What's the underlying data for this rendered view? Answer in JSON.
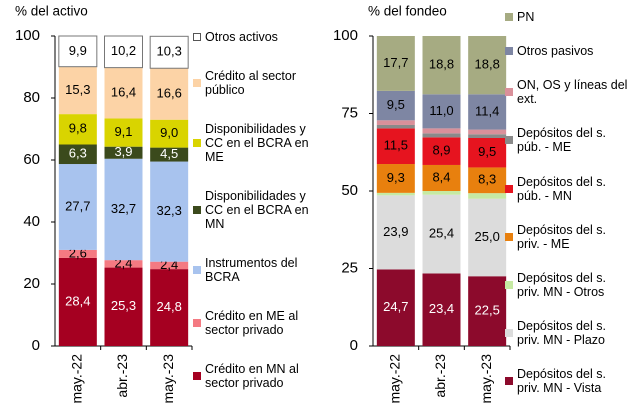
{
  "chart_data": [
    {
      "type": "stacked-bar",
      "title": "% del activo",
      "categories": [
        "may.-22",
        "abr.-23",
        "may.-23"
      ],
      "ylim": [
        0,
        100
      ],
      "yticks": [
        0,
        20,
        40,
        60,
        80,
        100
      ],
      "series": [
        {
          "name": "Crédito en MN al sector privado",
          "color": "#a50021",
          "values": [
            28.4,
            25.3,
            24.8
          ],
          "value_labels": [
            "28,4",
            "25,3",
            "24,8"
          ]
        },
        {
          "name": "Crédito en ME al sector privado",
          "color": "#f47a82",
          "values": [
            2.6,
            2.4,
            2.4
          ],
          "value_labels": [
            "2,6",
            "2,4",
            "2,4"
          ]
        },
        {
          "name": "Instrumentos del BCRA",
          "color": "#a8c3ee",
          "values": [
            27.7,
            32.7,
            32.3
          ],
          "value_labels": [
            "27,7",
            "32,7",
            "32,3"
          ]
        },
        {
          "name": "Disponibilidades y CC en el BCRA en MN",
          "color": "#3b4a1c",
          "values": [
            6.3,
            3.9,
            4.5
          ],
          "value_labels": [
            "6,3",
            "3,9",
            "4,5"
          ]
        },
        {
          "name": "Disponibilidades y CC en el BCRA en ME",
          "color": "#d9d400",
          "values": [
            9.8,
            9.1,
            9.0
          ],
          "value_labels": [
            "9,8",
            "9,1",
            "9,0"
          ]
        },
        {
          "name": "Crédito al sector público",
          "color": "#fcd3a6",
          "values": [
            15.3,
            16.4,
            16.6
          ],
          "value_labels": [
            "15,3",
            "16,4",
            "16,6"
          ]
        },
        {
          "name": "Otros activos",
          "color": "#ffffff",
          "values": [
            9.9,
            10.2,
            10.3
          ],
          "value_labels": [
            "9,9",
            "10,2",
            "10,3"
          ]
        }
      ]
    },
    {
      "type": "stacked-bar",
      "title": "% del fondeo",
      "categories": [
        "may.-22",
        "abr.-23",
        "may.-23"
      ],
      "ylim": [
        0,
        100
      ],
      "yticks": [
        0,
        25,
        50,
        75,
        100
      ],
      "series": [
        {
          "name": "Depósitos del s. priv. MN - Vista",
          "color": "#8c0a2c",
          "values": [
            24.7,
            23.4,
            22.5
          ],
          "value_labels": [
            "24,7",
            "23,4",
            "22,5"
          ]
        },
        {
          "name": "Depósitos del s. priv. MN - Plazo",
          "color": "#dcdcdc",
          "values": [
            23.9,
            25.4,
            25.0
          ],
          "value_labels": [
            "23,9",
            "25,4",
            "25,0"
          ]
        },
        {
          "name": "Depósitos del s. priv. MN - Otros",
          "color": "#c6eaa3",
          "values": [
            0.8,
            1.2,
            1.8
          ]
        },
        {
          "name": "Depósitos del s. priv. - ME",
          "color": "#e8800e",
          "values": [
            9.3,
            8.4,
            8.3
          ],
          "value_labels": [
            "9,3",
            "8,4",
            "8,3"
          ]
        },
        {
          "name": "Depósitos del s. púb. - MN",
          "color": "#e6141f",
          "values": [
            11.5,
            8.9,
            9.5
          ],
          "value_labels": [
            "11,5",
            "8,9",
            "9,5"
          ]
        },
        {
          "name": "Depósitos del s. púb. - ME",
          "color": "#8a8a8a",
          "values": [
            1.1,
            1.3,
            1.2
          ]
        },
        {
          "name": "ON, OS y líneas del ext.",
          "color": "#d9909a",
          "values": [
            1.5,
            1.6,
            1.5
          ]
        },
        {
          "name": "Otros pasivos",
          "color": "#7e86a3",
          "values": [
            9.5,
            11.0,
            11.4
          ],
          "value_labels": [
            "9,5",
            "11,0",
            "11,4"
          ]
        },
        {
          "name": "PN",
          "color": "#a6ab82",
          "values": [
            17.7,
            18.8,
            18.8
          ],
          "value_labels": [
            "17,7",
            "18,8",
            "18,8"
          ]
        }
      ]
    }
  ]
}
